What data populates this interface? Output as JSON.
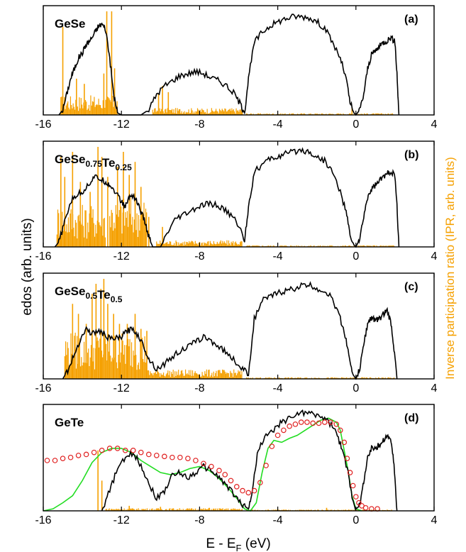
{
  "figure": {
    "ylabel_left": "edos (arb. units)",
    "ylabel_right": "Inverse participation ratio (IPR, arb. units)",
    "xlabel": "E - E",
    "xlabel_sub": "F",
    "xlabel_unit": " (eV)"
  },
  "colors": {
    "edos": "#000000",
    "ipr": "#f5a000",
    "green_curve": "#22dd22",
    "red_circles": "#e02020"
  },
  "chart_data": [
    {
      "type": "line",
      "panel_label": "(a)",
      "system": {
        "base": "GeSe",
        "parts": [
          {
            "t": "GeSe",
            "s": ""
          }
        ]
      },
      "xlim": [
        -16,
        4
      ],
      "xticks": [
        "-16",
        "-12",
        "-8",
        "-4",
        "0",
        "4"
      ],
      "edos": {
        "x": [
          -15.2,
          -15.0,
          -14.8,
          -14.6,
          -14.4,
          -14.2,
          -14.0,
          -13.8,
          -13.6,
          -13.4,
          -13.2,
          -13.0,
          -12.8,
          -12.6,
          -12.4,
          -12.2,
          -12.0,
          -11.0,
          -10.6,
          -10.2,
          -9.8,
          -9.4,
          -9.0,
          -8.6,
          -8.2,
          -7.8,
          -7.4,
          -7.0,
          -6.6,
          -6.2,
          -5.9,
          -5.7,
          -5.5,
          -5.2,
          -4.8,
          -4.4,
          -4.0,
          -3.6,
          -3.2,
          -2.8,
          -2.4,
          -2.0,
          -1.6,
          -1.2,
          -0.8,
          -0.5,
          -0.3,
          -0.1,
          0.0,
          0.2,
          0.4,
          0.6,
          0.8,
          1.0,
          1.2,
          1.4,
          1.6,
          1.8,
          2.0,
          2.1,
          2.2
        ],
        "y": [
          0.0,
          0.05,
          0.2,
          0.35,
          0.45,
          0.55,
          0.6,
          0.68,
          0.72,
          0.78,
          0.85,
          0.88,
          0.82,
          0.55,
          0.2,
          0.02,
          0.0,
          0.0,
          0.05,
          0.2,
          0.28,
          0.33,
          0.38,
          0.4,
          0.42,
          0.4,
          0.36,
          0.33,
          0.28,
          0.2,
          0.1,
          0.02,
          0.35,
          0.7,
          0.8,
          0.86,
          0.9,
          0.93,
          0.95,
          0.95,
          0.94,
          0.9,
          0.84,
          0.7,
          0.55,
          0.35,
          0.12,
          0.02,
          0.0,
          0.05,
          0.2,
          0.45,
          0.58,
          0.62,
          0.66,
          0.7,
          0.72,
          0.75,
          0.7,
          0.4,
          0.0
        ]
      },
      "ipr": {
        "bands": [
          [
            -15.1,
            -12.2,
            0.14
          ],
          [
            -10.4,
            -5.8,
            0.05
          ],
          [
            -5.6,
            2.0,
            0.012
          ]
        ],
        "spikes": [
          [
            -15.0,
            0.85
          ],
          [
            -14.3,
            0.35
          ],
          [
            -13.9,
            0.3
          ],
          [
            -12.9,
            0.4
          ],
          [
            -12.75,
            1.0
          ],
          [
            -12.5,
            1.0
          ],
          [
            -12.35,
            0.45
          ],
          [
            -10.1,
            0.2
          ],
          [
            -9.9,
            0.28
          ],
          [
            -9.6,
            0.22
          ],
          [
            -0.2,
            0.08
          ]
        ]
      }
    },
    {
      "type": "line",
      "panel_label": "(b)",
      "system": {
        "base": "GeSe0.75Te0.25",
        "parts": [
          {
            "t": "GeSe",
            "s": "0.75"
          },
          {
            "t": "Te",
            "s": "0.25"
          }
        ]
      },
      "xlim": [
        -16,
        4
      ],
      "xticks": [
        "-16",
        "-12",
        "-8",
        "-4",
        "0",
        "4"
      ],
      "edos": {
        "x": [
          -15.4,
          -15.2,
          -14.9,
          -14.6,
          -14.3,
          -14.0,
          -13.7,
          -13.4,
          -13.1,
          -12.8,
          -12.6,
          -12.3,
          -12.0,
          -11.8,
          -11.6,
          -11.4,
          -11.2,
          -11.0,
          -10.8,
          -10.6,
          -10.4,
          -10.0,
          -9.6,
          -9.2,
          -8.8,
          -8.4,
          -8.0,
          -7.6,
          -7.2,
          -6.8,
          -6.4,
          -6.0,
          -5.7,
          -5.5,
          -5.2,
          -4.8,
          -4.4,
          -4.0,
          -3.6,
          -3.2,
          -2.8,
          -2.4,
          -2.0,
          -1.6,
          -1.2,
          -0.8,
          -0.5,
          -0.3,
          -0.1,
          0.0,
          0.2,
          0.4,
          0.6,
          0.8,
          1.0,
          1.2,
          1.4,
          1.6,
          1.8,
          2.0,
          2.1,
          2.2
        ],
        "y": [
          0.0,
          0.05,
          0.25,
          0.45,
          0.52,
          0.55,
          0.62,
          0.7,
          0.68,
          0.65,
          0.62,
          0.55,
          0.45,
          0.4,
          0.5,
          0.52,
          0.45,
          0.35,
          0.25,
          0.1,
          0.0,
          0.0,
          0.15,
          0.28,
          0.32,
          0.36,
          0.4,
          0.43,
          0.42,
          0.38,
          0.32,
          0.22,
          0.06,
          0.4,
          0.75,
          0.82,
          0.88,
          0.9,
          0.93,
          0.95,
          0.97,
          0.95,
          0.9,
          0.86,
          0.75,
          0.55,
          0.35,
          0.12,
          0.02,
          0.0,
          0.08,
          0.3,
          0.5,
          0.58,
          0.62,
          0.66,
          0.7,
          0.73,
          0.76,
          0.7,
          0.4,
          0.0
        ]
      },
      "ipr": {
        "bands": [
          [
            -15.3,
            -12.8,
            0.32
          ],
          [
            -12.6,
            -10.7,
            0.38
          ],
          [
            -10.2,
            -5.8,
            0.05
          ],
          [
            -5.6,
            2.0,
            0.012
          ]
        ],
        "spikes": [
          [
            -15.1,
            0.9
          ],
          [
            -14.9,
            0.7
          ],
          [
            -14.5,
            0.95
          ],
          [
            -14.1,
            0.65
          ],
          [
            -13.6,
            0.55
          ],
          [
            -13.2,
            1.0
          ],
          [
            -13.0,
            0.9
          ],
          [
            -12.7,
            0.7
          ],
          [
            -12.2,
            0.8
          ],
          [
            -11.9,
            0.95
          ],
          [
            -11.6,
            0.72
          ],
          [
            -11.3,
            0.85
          ],
          [
            -11.0,
            0.6
          ],
          [
            -10.6,
            0.3
          ],
          [
            -9.9,
            0.2
          ]
        ]
      }
    },
    {
      "type": "line",
      "panel_label": "(c)",
      "system": {
        "base": "GeSe0.5Te0.5",
        "parts": [
          {
            "t": "GeSe",
            "s": "0.5"
          },
          {
            "t": "Te",
            "s": "0.5"
          }
        ]
      },
      "xlim": [
        -16,
        4
      ],
      "xticks": [
        "-16",
        "-12",
        "-8",
        "-4",
        "0",
        "4"
      ],
      "edos": {
        "x": [
          -15.0,
          -14.7,
          -14.4,
          -14.1,
          -13.8,
          -13.5,
          -13.2,
          -12.9,
          -12.6,
          -12.3,
          -12.0,
          -11.7,
          -11.4,
          -11.1,
          -10.8,
          -10.6,
          -10.2,
          -9.8,
          -9.4,
          -9.0,
          -8.6,
          -8.2,
          -7.8,
          -7.4,
          -7.0,
          -6.6,
          -6.2,
          -5.8,
          -5.5,
          -5.2,
          -4.8,
          -4.4,
          -4.0,
          -3.6,
          -3.2,
          -2.8,
          -2.4,
          -2.0,
          -1.6,
          -1.2,
          -0.8,
          -0.5,
          -0.3,
          -0.1,
          0.0,
          0.2,
          0.4,
          0.6,
          0.8,
          1.0,
          1.2,
          1.4,
          1.6,
          1.8,
          1.95,
          2.1
        ],
        "y": [
          0.0,
          0.1,
          0.25,
          0.4,
          0.5,
          0.45,
          0.48,
          0.45,
          0.4,
          0.4,
          0.42,
          0.48,
          0.5,
          0.42,
          0.3,
          0.2,
          0.1,
          0.15,
          0.22,
          0.28,
          0.32,
          0.37,
          0.42,
          0.38,
          0.32,
          0.26,
          0.18,
          0.1,
          0.05,
          0.6,
          0.78,
          0.82,
          0.86,
          0.88,
          0.9,
          0.93,
          0.94,
          0.9,
          0.88,
          0.8,
          0.6,
          0.4,
          0.15,
          0.03,
          0.0,
          0.1,
          0.35,
          0.55,
          0.62,
          0.58,
          0.6,
          0.65,
          0.68,
          0.55,
          0.3,
          0.0
        ]
      },
      "ipr": {
        "bands": [
          [
            -14.9,
            -10.7,
            0.35
          ],
          [
            -10.7,
            -5.8,
            0.07
          ],
          [
            -5.6,
            2.0,
            0.012
          ]
        ],
        "spikes": [
          [
            -14.5,
            0.75
          ],
          [
            -14.2,
            0.65
          ],
          [
            -13.8,
            0.55
          ],
          [
            -13.5,
            0.85
          ],
          [
            -13.3,
            0.95
          ],
          [
            -13.05,
            0.9
          ],
          [
            -12.9,
            1.0
          ],
          [
            -12.7,
            0.75
          ],
          [
            -12.4,
            0.65
          ],
          [
            -12.1,
            0.55
          ],
          [
            -11.7,
            0.55
          ],
          [
            -11.3,
            0.65
          ],
          [
            -11.0,
            0.5
          ],
          [
            -10.7,
            0.48
          ]
        ]
      }
    },
    {
      "type": "line",
      "panel_label": "(d)",
      "system": {
        "base": "GeTe",
        "parts": [
          {
            "t": "GeTe",
            "s": ""
          }
        ]
      },
      "xlim": [
        -16,
        4
      ],
      "xticks": [
        "-16",
        "-12",
        "-8",
        "-4",
        "0",
        "4"
      ],
      "edos": {
        "x": [
          -13.0,
          -12.6,
          -12.2,
          -11.8,
          -11.4,
          -11.0,
          -10.6,
          -10.2,
          -9.8,
          -9.4,
          -9.0,
          -8.6,
          -8.2,
          -7.8,
          -7.4,
          -7.0,
          -6.6,
          -6.2,
          -5.8,
          -5.5,
          -5.3,
          -5.0,
          -4.6,
          -4.2,
          -3.8,
          -3.4,
          -3.0,
          -2.6,
          -2.2,
          -1.8,
          -1.4,
          -1.0,
          -0.7,
          -0.4,
          -0.2,
          0.0,
          0.2,
          0.4,
          0.6,
          0.8,
          1.0,
          1.2,
          1.4,
          1.6,
          1.8,
          1.95,
          2.1
        ],
        "y": [
          0.0,
          0.2,
          0.42,
          0.52,
          0.58,
          0.45,
          0.28,
          0.12,
          0.2,
          0.35,
          0.38,
          0.33,
          0.38,
          0.44,
          0.4,
          0.33,
          0.25,
          0.15,
          0.06,
          0.02,
          0.2,
          0.62,
          0.74,
          0.8,
          0.88,
          0.92,
          0.96,
          0.98,
          0.96,
          0.94,
          0.88,
          0.78,
          0.6,
          0.38,
          0.15,
          0.02,
          0.05,
          0.3,
          0.52,
          0.62,
          0.63,
          0.65,
          0.7,
          0.74,
          0.7,
          0.45,
          0.0
        ]
      },
      "green": {
        "x": [
          -16.0,
          -15.5,
          -15.0,
          -14.5,
          -14.0,
          -13.5,
          -13.0,
          -12.5,
          -12.0,
          -11.5,
          -11.0,
          -10.5,
          -10.0,
          -9.5,
          -9.0,
          -8.5,
          -8.0,
          -7.5,
          -7.0,
          -6.5,
          -6.0,
          -5.7,
          -5.4,
          -5.1,
          -4.8,
          -4.5,
          -4.2,
          -3.8,
          -3.4,
          -3.0,
          -2.6,
          -2.2,
          -1.8,
          -1.4,
          -1.0,
          -0.8,
          -0.6,
          -0.4,
          -0.2,
          0.0,
          0.3
        ],
        "y": [
          0.0,
          0.02,
          0.08,
          0.15,
          0.3,
          0.48,
          0.58,
          0.62,
          0.62,
          0.58,
          0.5,
          0.44,
          0.38,
          0.36,
          0.38,
          0.42,
          0.44,
          0.4,
          0.32,
          0.22,
          0.1,
          0.02,
          0.0,
          0.08,
          0.38,
          0.62,
          0.7,
          0.68,
          0.72,
          0.75,
          0.8,
          0.85,
          0.9,
          0.92,
          0.88,
          0.8,
          0.6,
          0.4,
          0.15,
          0.02,
          0.0
        ]
      },
      "red_circles": {
        "x": [
          -15.8,
          -15.4,
          -15.0,
          -14.6,
          -14.2,
          -13.8,
          -13.4,
          -13.0,
          -12.6,
          -12.2,
          -11.8,
          -11.4,
          -11.0,
          -10.6,
          -10.2,
          -9.8,
          -9.4,
          -9.0,
          -8.6,
          -8.2,
          -7.8,
          -7.4,
          -7.0,
          -6.7,
          -6.4,
          -6.1,
          -5.8,
          -5.5,
          -5.2,
          -4.9,
          -4.6,
          -4.3,
          -4.0,
          -3.7,
          -3.4,
          -3.1,
          -2.8,
          -2.5,
          -2.2,
          -1.9,
          -1.6,
          -1.3,
          -1.0,
          -0.8,
          -0.6,
          -0.45,
          -0.3,
          -0.15,
          0.0,
          0.15,
          0.3,
          0.5,
          0.8,
          1.1
        ],
        "y": [
          0.5,
          0.5,
          0.52,
          0.53,
          0.55,
          0.56,
          0.58,
          0.6,
          0.62,
          0.62,
          0.6,
          0.6,
          0.58,
          0.56,
          0.55,
          0.54,
          0.53,
          0.53,
          0.52,
          0.5,
          0.47,
          0.44,
          0.4,
          0.36,
          0.3,
          0.24,
          0.2,
          0.18,
          0.2,
          0.28,
          0.45,
          0.64,
          0.75,
          0.8,
          0.84,
          0.86,
          0.88,
          0.88,
          0.87,
          0.87,
          0.88,
          0.88,
          0.86,
          0.8,
          0.68,
          0.52,
          0.38,
          0.25,
          0.14,
          0.08,
          0.05,
          0.03,
          0.02,
          0.02
        ]
      },
      "ipr": {
        "bands": [
          [
            -12.8,
            -5.8,
            0.02
          ],
          [
            -5.6,
            2.0,
            0.01
          ]
        ],
        "spikes": [
          [
            -13.2,
            0.6
          ],
          [
            -13.0,
            0.3
          ],
          [
            -11.6,
            0.05
          ],
          [
            -10.0,
            0.04
          ],
          [
            -7.5,
            0.03
          ],
          [
            -1.5,
            0.03
          ]
        ]
      }
    }
  ]
}
